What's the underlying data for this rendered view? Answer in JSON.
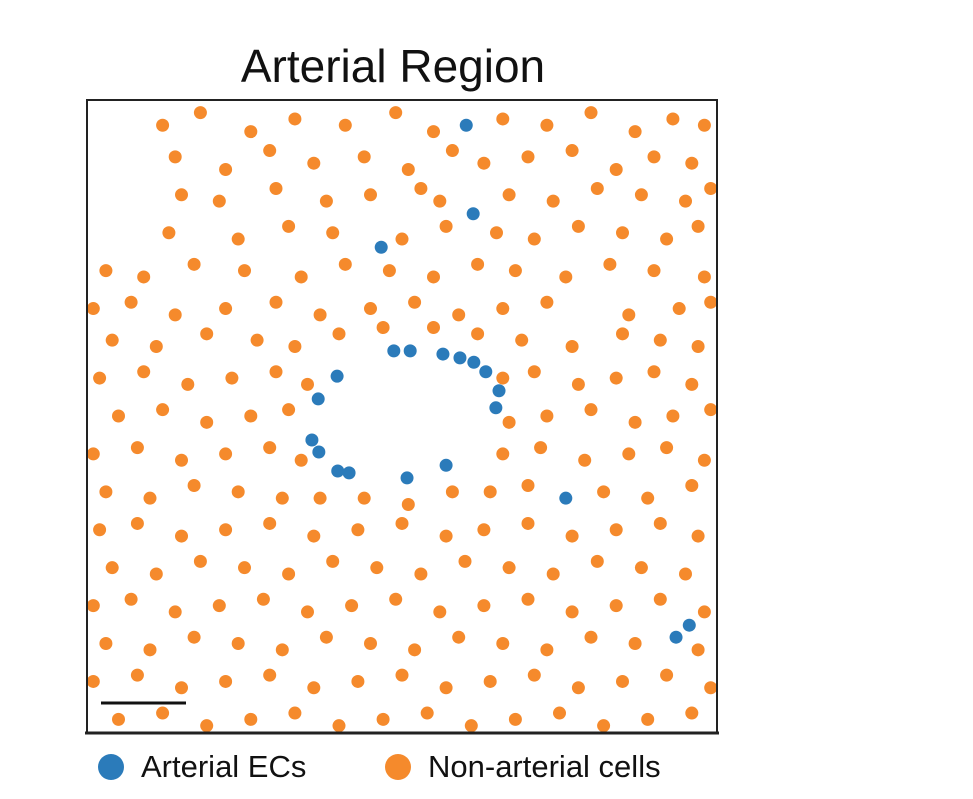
{
  "chart_data": {
    "type": "scatter",
    "title": "Arterial Region",
    "xlim": [
      0,
      100
    ],
    "ylim": [
      0,
      100
    ],
    "series": [
      {
        "name": "Arterial ECs",
        "color": "#2b7bba",
        "x": [
          60.2,
          61.3,
          46.7,
          48.7,
          51.3,
          56.5,
          59.2,
          61.4,
          63.3,
          39.7,
          65.4,
          36.7,
          64.9,
          35.7,
          36.8,
          39.8,
          41.6,
          50.8,
          57.0,
          76.0,
          95.6,
          93.5
        ],
        "values": [
          96.0,
          82.0,
          76.7,
          60.3,
          60.3,
          59.8,
          59.2,
          58.5,
          57.0,
          56.3,
          54.0,
          52.7,
          51.3,
          46.2,
          44.3,
          41.3,
          41.0,
          40.2,
          42.2,
          37.0,
          16.9,
          15.0
        ]
      },
      {
        "name": "Non-arterial cells",
        "color": "#f58a2c",
        "x": [
          12,
          18,
          26,
          33,
          41,
          49,
          55,
          66,
          73,
          80,
          87,
          93,
          98,
          14,
          22,
          29,
          36,
          44,
          51,
          58,
          63,
          70,
          77,
          84,
          90,
          96,
          15,
          21,
          30,
          38,
          45,
          53,
          56,
          67,
          74,
          81,
          88,
          95,
          99,
          13,
          24,
          32,
          39,
          50,
          57,
          65,
          71,
          78,
          85,
          92,
          97,
          3,
          9,
          17,
          25,
          34,
          41,
          48,
          55,
          62,
          68,
          76,
          83,
          90,
          98,
          1,
          7,
          14,
          22,
          30,
          37,
          45,
          52,
          59,
          66,
          73,
          86,
          94,
          99,
          4,
          11,
          19,
          27,
          33,
          40,
          47,
          55,
          62,
          69,
          77,
          85,
          91,
          97,
          2,
          9,
          16,
          23,
          30,
          35,
          66,
          71,
          78,
          84,
          90,
          96,
          5,
          12,
          19,
          26,
          32,
          67,
          73,
          80,
          87,
          93,
          99,
          1,
          8,
          15,
          22,
          29,
          34,
          66,
          72,
          79,
          86,
          92,
          98,
          3,
          10,
          17,
          24,
          31,
          37,
          44,
          51,
          58,
          64,
          70,
          82,
          89,
          96,
          2,
          8,
          15,
          22,
          29,
          36,
          43,
          50,
          57,
          63,
          70,
          77,
          84,
          91,
          97,
          4,
          11,
          18,
          25,
          32,
          39,
          46,
          53,
          60,
          67,
          74,
          81,
          88,
          95,
          1,
          7,
          14,
          21,
          28,
          35,
          42,
          49,
          56,
          63,
          70,
          77,
          84,
          91,
          98,
          3,
          10,
          17,
          24,
          31,
          38,
          45,
          52,
          59,
          66,
          73,
          80,
          87,
          97,
          1,
          8,
          15,
          22,
          29,
          36,
          43,
          50,
          57,
          64,
          71,
          78,
          85,
          92,
          99,
          5,
          12,
          19,
          26,
          33,
          40,
          47,
          54,
          61,
          68,
          75,
          82,
          89,
          96
        ],
        "values": [
          96,
          98,
          95,
          97,
          96,
          98,
          95,
          97,
          96,
          98,
          95,
          97,
          96,
          91,
          89,
          92,
          90,
          91,
          89,
          92,
          90,
          91,
          92,
          89,
          91,
          90,
          85,
          84,
          86,
          84,
          85,
          86,
          84,
          85,
          84,
          86,
          85,
          84,
          86,
          79,
          78,
          80,
          79,
          78,
          80,
          79,
          78,
          80,
          79,
          78,
          80,
          73,
          72,
          74,
          73,
          72,
          74,
          73,
          72,
          74,
          73,
          72,
          74,
          73,
          72,
          67,
          68,
          66,
          67,
          68,
          66,
          67,
          68,
          66,
          67,
          68,
          66,
          67,
          68,
          62,
          61,
          63,
          62,
          61,
          63,
          64,
          64,
          63,
          62,
          61,
          63,
          62,
          61,
          56,
          57,
          55,
          56,
          57,
          55,
          56,
          57,
          55,
          56,
          57,
          55,
          50,
          51,
          49,
          50,
          51,
          49,
          50,
          51,
          49,
          50,
          51,
          44,
          45,
          43,
          44,
          45,
          43,
          44,
          45,
          43,
          44,
          45,
          43,
          38,
          37,
          39,
          38,
          37,
          37,
          37,
          36,
          38,
          38,
          39,
          38,
          37,
          39,
          32,
          33,
          31,
          32,
          33,
          31,
          32,
          33,
          31,
          32,
          33,
          31,
          32,
          33,
          31,
          26,
          25,
          27,
          26,
          25,
          27,
          26,
          25,
          27,
          26,
          25,
          27,
          26,
          25,
          20,
          21,
          19,
          20,
          21,
          19,
          20,
          21,
          19,
          20,
          21,
          19,
          20,
          21,
          19,
          14,
          13,
          15,
          14,
          13,
          15,
          14,
          13,
          15,
          14,
          13,
          15,
          14,
          13,
          8,
          9,
          7,
          8,
          9,
          7,
          8,
          9,
          7,
          8,
          9,
          7,
          8,
          9,
          7,
          2,
          3,
          1,
          2,
          3,
          1,
          2,
          3,
          1,
          2,
          3,
          1,
          2,
          3
        ]
      }
    ]
  }
}
